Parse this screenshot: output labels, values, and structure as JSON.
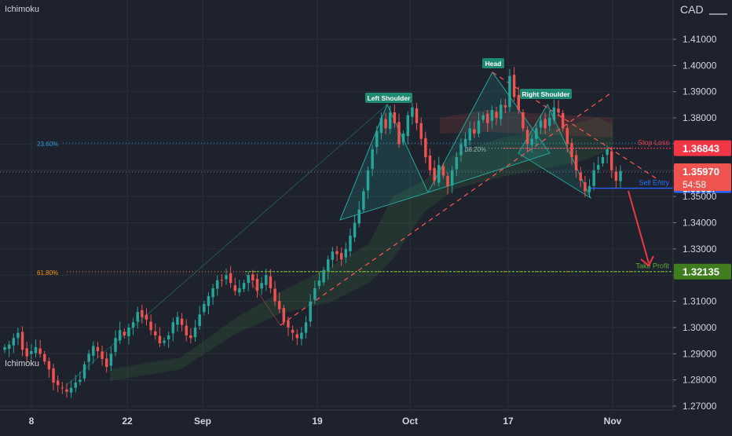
{
  "indicator": "Ichimoku",
  "currency": "CAD",
  "colors": {
    "background": "#1e222d",
    "grid": "#2a2e39",
    "up": "#26a69a",
    "down": "#ef5350",
    "fib": "#2a9fd6",
    "fib_orange": "#ff9800",
    "tp_green": "#5fa83a",
    "sell_blue": "#2962ff",
    "stop_red": "#f23645"
  },
  "chart_data": {
    "type": "candlestick",
    "y_axis_ticks": [
      "1.41000",
      "1.40000",
      "1.39000",
      "1.38000",
      "1.37000",
      "1.36000",
      "1.35000",
      "1.34000",
      "1.33000",
      "1.32000",
      "1.31000",
      "1.30000",
      "1.29000",
      "1.28000",
      "1.27000"
    ],
    "ylim": [
      1.268,
      1.418
    ],
    "x_axis_ticks": [
      "8",
      "22",
      "Sep",
      "19",
      "Oct",
      "17",
      "Nov"
    ],
    "fib_levels": [
      {
        "label": "23.60%",
        "value": 1.3704
      },
      {
        "label": "38.20%",
        "value": 1.3684
      },
      {
        "label": "61.80%",
        "value": 1.3213
      }
    ],
    "stop_loss": {
      "label": "Stop Loss",
      "value": "1.36843"
    },
    "current_price": {
      "value": "1.35970",
      "countdown": "54:58"
    },
    "sell_entry": {
      "label": "Sell Entry",
      "value": "1.35317"
    },
    "take_profit": {
      "label": "Take Profit",
      "value": "1.32135"
    },
    "pattern_labels": [
      "Left Shoulder",
      "Head",
      "Right Shoulder"
    ],
    "closes": [
      1.2925,
      1.2935,
      1.296,
      1.298,
      1.2915,
      1.289,
      1.291,
      1.2925,
      1.29,
      1.287,
      1.284,
      1.279,
      1.278,
      1.277,
      1.2755,
      1.277,
      1.279,
      1.28,
      1.286,
      1.29,
      1.293,
      1.291,
      1.288,
      1.285,
      1.29,
      1.296,
      1.299,
      1.297,
      1.3,
      1.302,
      1.306,
      1.304,
      1.303,
      1.299,
      1.297,
      1.294,
      1.295,
      1.297,
      1.302,
      1.304,
      1.301,
      1.297,
      1.296,
      1.3,
      1.305,
      1.309,
      1.312,
      1.315,
      1.318,
      1.318,
      1.32,
      1.317,
      1.314,
      1.315,
      1.317,
      1.32,
      1.318,
      1.314,
      1.317,
      1.32,
      1.315,
      1.31,
      1.307,
      1.302,
      1.3,
      1.298,
      1.296,
      1.298,
      1.302,
      1.31,
      1.315,
      1.318,
      1.322,
      1.326,
      1.329,
      1.328,
      1.326,
      1.33,
      1.335,
      1.34,
      1.345,
      1.352,
      1.36,
      1.368,
      1.375,
      1.38,
      1.376,
      1.382,
      1.378,
      1.37,
      1.374,
      1.381,
      1.384,
      1.378,
      1.372,
      1.365,
      1.36,
      1.356,
      1.362,
      1.358,
      1.354,
      1.36,
      1.365,
      1.37,
      1.372,
      1.376,
      1.374,
      1.379,
      1.381,
      1.378,
      1.383,
      1.38,
      1.385,
      1.384,
      1.396,
      1.388,
      1.383,
      1.376,
      1.37,
      1.372,
      1.376,
      1.379,
      1.376,
      1.38,
      1.384,
      1.382,
      1.376,
      1.37,
      1.365,
      1.36,
      1.356,
      1.352,
      1.354,
      1.36,
      1.362,
      1.365,
      1.368,
      1.36,
      1.356,
      1.3597
    ]
  }
}
